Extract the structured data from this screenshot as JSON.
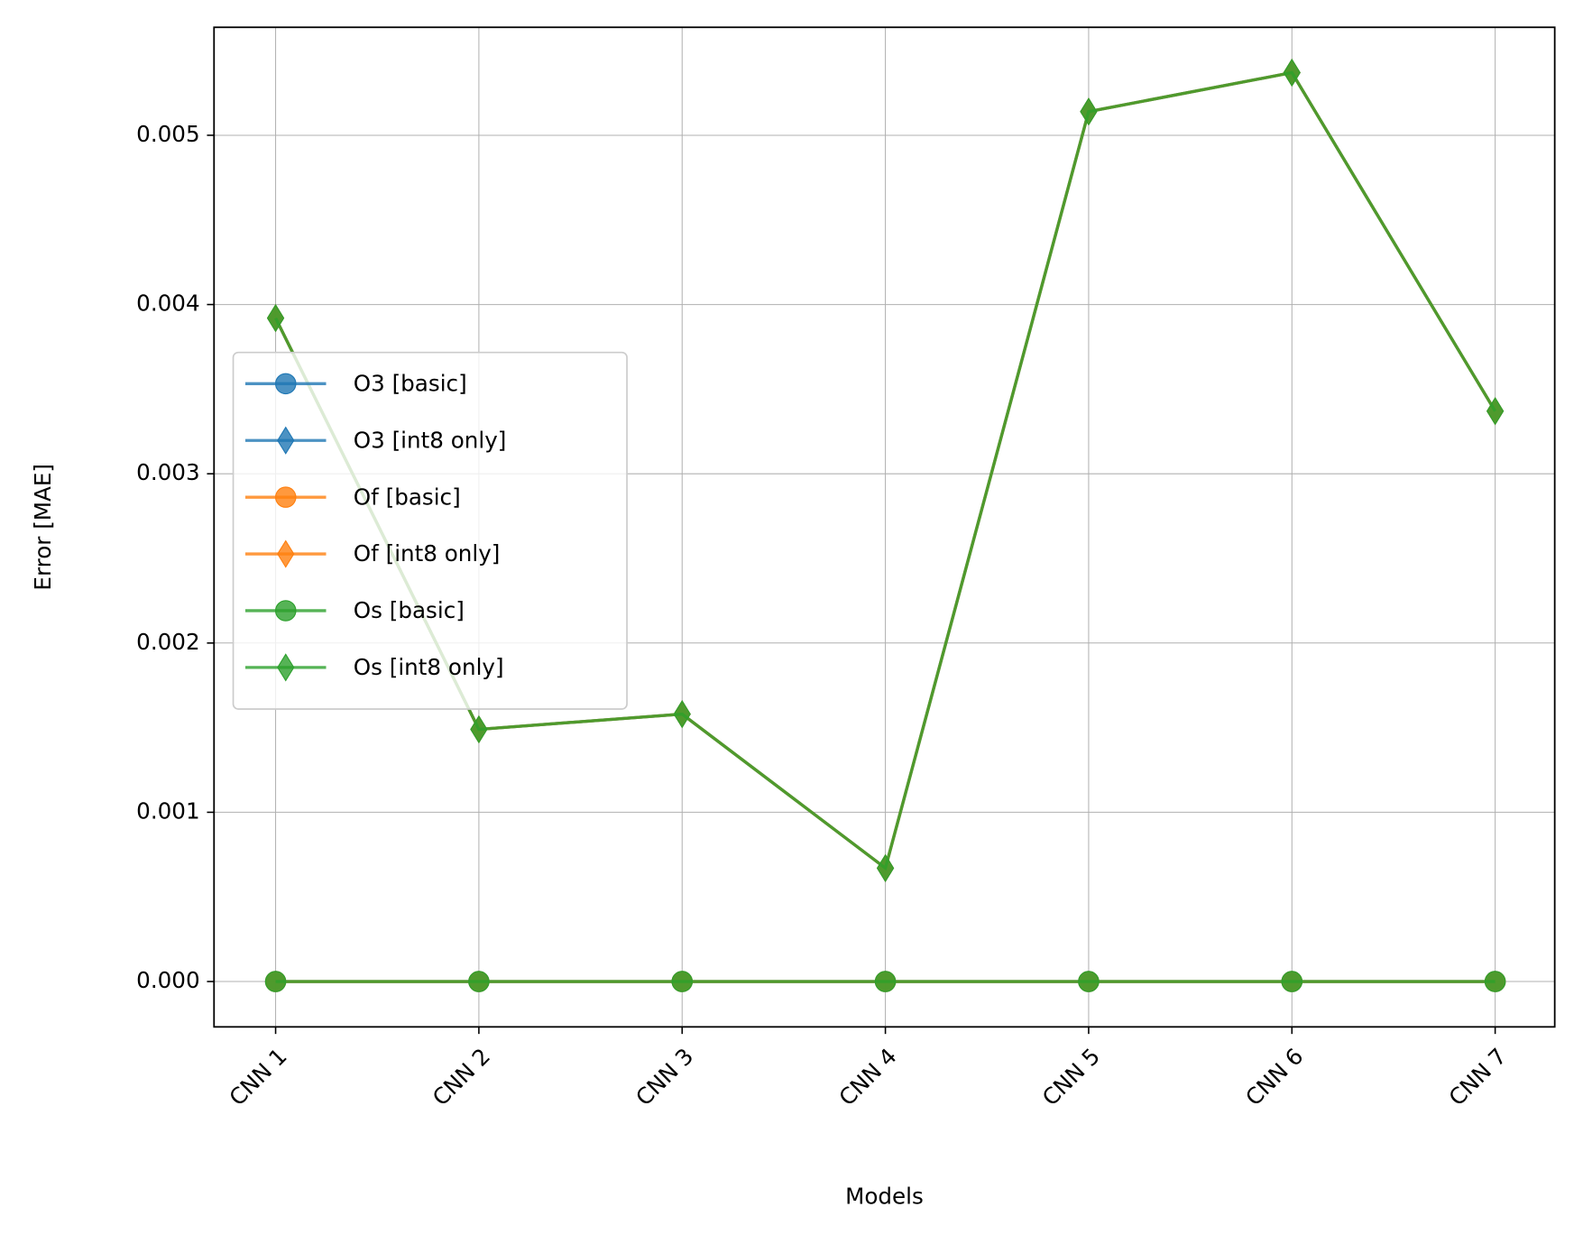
{
  "chart_data": {
    "type": "line",
    "x_label": "Models",
    "y_label": "Error [MAE]",
    "categories": [
      "CNN 1",
      "CNN 2",
      "CNN 3",
      "CNN 4",
      "CNN 5",
      "CNN 6",
      "CNN 7"
    ],
    "ylim": [
      -0.000268,
      0.005638
    ],
    "yticks": [
      {
        "value": 0,
        "label": "0.000"
      },
      {
        "value": 0.001,
        "label": "0.001"
      },
      {
        "value": 0.002,
        "label": "0.002"
      },
      {
        "value": 0.003,
        "label": "0.003"
      },
      {
        "value": 0.004,
        "label": "0.004"
      },
      {
        "value": 0.005,
        "label": "0.005"
      }
    ],
    "grid": true,
    "legend": "center left",
    "series": [
      {
        "name": "O3 [basic]",
        "color": "#1f77b4",
        "marker": "circle",
        "values": [
          0,
          0,
          0,
          0,
          0,
          0,
          0
        ]
      },
      {
        "name": "O3 [int8 only]",
        "color": "#1f77b4",
        "marker": "diamond",
        "values": [
          0.00392,
          0.00149,
          0.00158,
          0.00067,
          0.00514,
          0.00537,
          0.00337
        ]
      },
      {
        "name": "Of [basic]",
        "color": "#ff7f0e",
        "marker": "circle",
        "values": [
          0,
          0,
          0,
          0,
          0,
          0,
          0
        ]
      },
      {
        "name": "Of [int8 only]",
        "color": "#ff7f0e",
        "marker": "diamond",
        "values": [
          0.00392,
          0.00149,
          0.00158,
          0.00067,
          0.00514,
          0.00537,
          0.00337
        ]
      },
      {
        "name": "Os [basic]",
        "color": "#2ca02c",
        "marker": "circle",
        "values": [
          0,
          0,
          0,
          0,
          0,
          0,
          0
        ]
      },
      {
        "name": "Os [int8 only]",
        "color": "#2ca02c",
        "marker": "diamond",
        "values": [
          0.00392,
          0.00149,
          0.00158,
          0.00067,
          0.00514,
          0.00537,
          0.00337
        ]
      }
    ]
  }
}
